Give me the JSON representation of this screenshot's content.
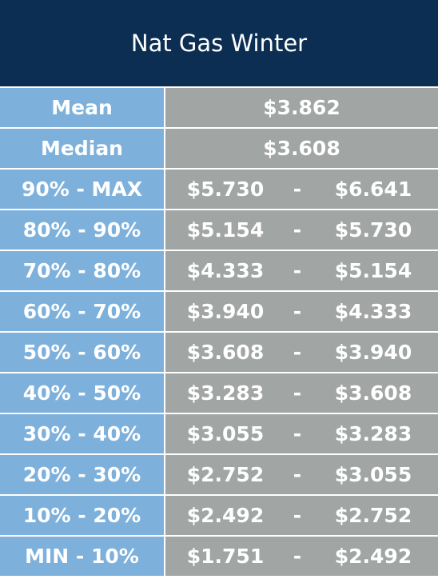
{
  "header": {
    "title": "Nat Gas Winter"
  },
  "table": {
    "rows": [
      {
        "label": "Mean",
        "value": "$3.862"
      },
      {
        "label": "Median",
        "value": "$3.608"
      },
      {
        "label": "90% - MAX",
        "low": "$5.730",
        "sep": "-",
        "high": "$6.641"
      },
      {
        "label": "80% - 90%",
        "low": "$5.154",
        "sep": "-",
        "high": "$5.730"
      },
      {
        "label": "70% - 80%",
        "low": "$4.333",
        "sep": "-",
        "high": "$5.154"
      },
      {
        "label": "60% - 70%",
        "low": "$3.940",
        "sep": "-",
        "high": "$4.333"
      },
      {
        "label": "50% - 60%",
        "low": "$3.608",
        "sep": "-",
        "high": "$3.940"
      },
      {
        "label": "40% - 50%",
        "low": "$3.283",
        "sep": "-",
        "high": "$3.608"
      },
      {
        "label": "30% - 40%",
        "low": "$3.055",
        "sep": "-",
        "high": "$3.283"
      },
      {
        "label": "20% - 30%",
        "low": "$2.752",
        "sep": "-",
        "high": "$3.055"
      },
      {
        "label": "10% - 20%",
        "low": "$2.492",
        "sep": "-",
        "high": "$2.752"
      },
      {
        "label": "MIN - 10%",
        "low": "$1.751",
        "sep": "-",
        "high": "$2.492"
      }
    ]
  }
}
